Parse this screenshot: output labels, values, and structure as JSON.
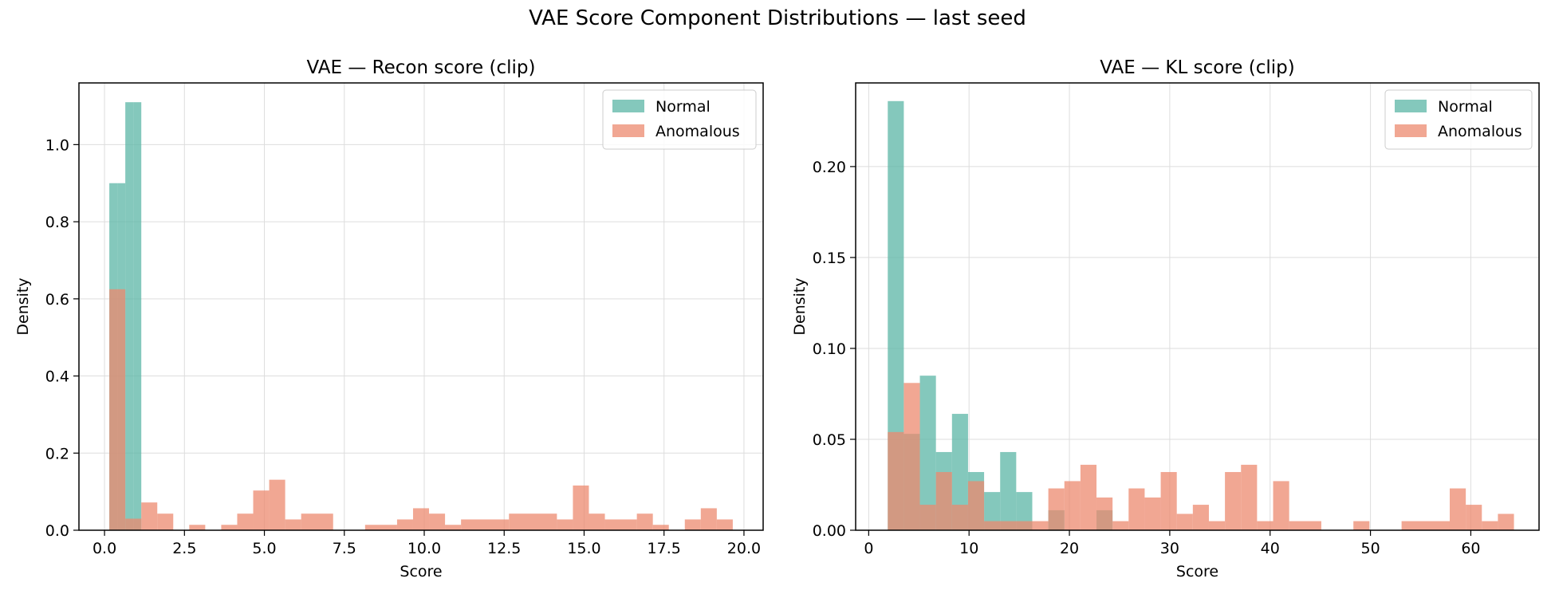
{
  "figure": {
    "suptitle": "VAE Score Component Distributions — last seed",
    "colors": {
      "normal": "#5BB5A6",
      "anomalous": "#EC8A6F"
    }
  },
  "chart_data": [
    {
      "type": "histogram",
      "title": "VAE — Recon score (clip)",
      "xlabel": "Score",
      "ylabel": "Density",
      "xlim": [
        -0.8,
        20.6
      ],
      "ylim": [
        0,
        1.16
      ],
      "xticks": [
        0.0,
        2.5,
        5.0,
        7.5,
        10.0,
        12.5,
        15.0,
        17.5,
        20.0
      ],
      "xtick_labels": [
        "0.0",
        "2.5",
        "5.0",
        "7.5",
        "10.0",
        "12.5",
        "15.0",
        "17.5",
        "20.0"
      ],
      "yticks": [
        0.0,
        0.2,
        0.4,
        0.6,
        0.8,
        1.0
      ],
      "ytick_labels": [
        "0.0",
        "0.2",
        "0.4",
        "0.6",
        "0.8",
        "1.0"
      ],
      "grid": true,
      "legend_position": "top-right",
      "series": [
        {
          "name": "Normal",
          "color": "#5BB5A6",
          "bins": [
            [
              0.15,
              0.4,
              0.9
            ],
            [
              0.4,
              0.65,
              0.9
            ],
            [
              0.65,
              0.9,
              1.11
            ],
            [
              0.9,
              1.15,
              1.11
            ]
          ]
        },
        {
          "name": "Anomalous",
          "color": "#EC8A6F",
          "bins": [
            [
              0.15,
              0.65,
              0.625
            ],
            [
              0.65,
              1.15,
              0.03
            ],
            [
              1.15,
              1.65,
              0.072
            ],
            [
              1.65,
              2.15,
              0.043
            ],
            [
              2.65,
              3.15,
              0.014
            ],
            [
              3.65,
              4.15,
              0.014
            ],
            [
              4.15,
              4.65,
              0.043
            ],
            [
              4.65,
              5.15,
              0.103
            ],
            [
              5.15,
              5.65,
              0.131
            ],
            [
              5.65,
              6.15,
              0.028
            ],
            [
              6.15,
              7.15,
              0.043
            ],
            [
              8.15,
              9.15,
              0.014
            ],
            [
              9.15,
              9.65,
              0.028
            ],
            [
              9.65,
              10.15,
              0.057
            ],
            [
              10.15,
              10.65,
              0.043
            ],
            [
              10.65,
              11.15,
              0.014
            ],
            [
              11.15,
              12.65,
              0.028
            ],
            [
              12.65,
              14.15,
              0.043
            ],
            [
              14.15,
              14.65,
              0.028
            ],
            [
              14.65,
              15.15,
              0.116
            ],
            [
              15.15,
              15.65,
              0.043
            ],
            [
              15.65,
              16.65,
              0.028
            ],
            [
              16.65,
              17.15,
              0.043
            ],
            [
              17.15,
              17.65,
              0.014
            ],
            [
              18.15,
              18.65,
              0.028
            ],
            [
              18.65,
              19.15,
              0.057
            ],
            [
              19.15,
              19.65,
              0.028
            ]
          ]
        }
      ]
    },
    {
      "type": "histogram",
      "title": "VAE — KL score (clip)",
      "xlabel": "Score",
      "ylabel": "Density",
      "xlim": [
        -1.3,
        66.8
      ],
      "ylim": [
        0,
        0.246
      ],
      "xticks": [
        0,
        10,
        20,
        30,
        40,
        50,
        60
      ],
      "xtick_labels": [
        "0",
        "10",
        "20",
        "30",
        "40",
        "50",
        "60"
      ],
      "yticks": [
        0.0,
        0.05,
        0.1,
        0.15,
        0.2
      ],
      "ytick_labels": [
        "0.00",
        "0.05",
        "0.10",
        "0.15",
        "0.20"
      ],
      "grid": true,
      "legend_position": "top-right",
      "series": [
        {
          "name": "Normal",
          "color": "#5BB5A6",
          "bins": [
            [
              1.9,
              3.5,
              0.236
            ],
            [
              3.5,
              5.1,
              0.053
            ],
            [
              5.1,
              6.7,
              0.085
            ],
            [
              6.7,
              8.3,
              0.043
            ],
            [
              8.3,
              9.9,
              0.064
            ],
            [
              9.9,
              11.5,
              0.032
            ],
            [
              11.5,
              13.1,
              0.021
            ],
            [
              13.1,
              14.7,
              0.043
            ],
            [
              14.7,
              16.3,
              0.021
            ],
            [
              16.3,
              17.9,
              0.0
            ],
            [
              17.9,
              19.5,
              0.011
            ],
            [
              19.5,
              22.7,
              0.0
            ],
            [
              22.7,
              24.3,
              0.011
            ]
          ]
        },
        {
          "name": "Anomalous",
          "color": "#EC8A6F",
          "bins": [
            [
              1.9,
              3.5,
              0.054
            ],
            [
              3.5,
              5.1,
              0.081
            ],
            [
              5.1,
              6.7,
              0.014
            ],
            [
              6.7,
              8.3,
              0.032
            ],
            [
              8.3,
              9.9,
              0.014
            ],
            [
              9.9,
              11.5,
              0.027
            ],
            [
              11.5,
              17.9,
              0.005
            ],
            [
              17.9,
              19.5,
              0.023
            ],
            [
              19.5,
              21.1,
              0.027
            ],
            [
              21.1,
              22.7,
              0.036
            ],
            [
              22.7,
              24.3,
              0.018
            ],
            [
              24.3,
              25.9,
              0.005
            ],
            [
              25.9,
              27.5,
              0.023
            ],
            [
              27.5,
              29.1,
              0.018
            ],
            [
              29.1,
              30.7,
              0.032
            ],
            [
              30.7,
              32.3,
              0.009
            ],
            [
              32.3,
              33.9,
              0.014
            ],
            [
              33.9,
              35.5,
              0.005
            ],
            [
              35.5,
              37.1,
              0.032
            ],
            [
              37.1,
              38.7,
              0.036
            ],
            [
              38.7,
              40.3,
              0.005
            ],
            [
              40.3,
              41.9,
              0.027
            ],
            [
              41.9,
              45.1,
              0.005
            ],
            [
              48.3,
              49.9,
              0.005
            ],
            [
              53.1,
              57.9,
              0.005
            ],
            [
              57.9,
              59.5,
              0.023
            ],
            [
              59.5,
              61.1,
              0.014
            ],
            [
              61.1,
              62.7,
              0.005
            ],
            [
              62.7,
              64.3,
              0.009
            ]
          ]
        }
      ]
    }
  ]
}
